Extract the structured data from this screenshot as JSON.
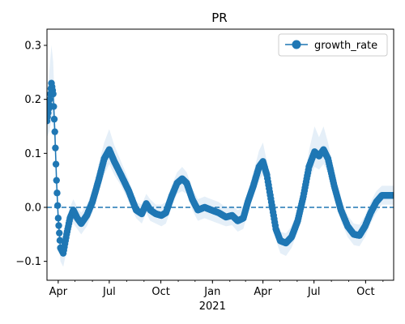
{
  "chart_data": {
    "type": "line",
    "title": "PR",
    "xlabel": "",
    "ylabel": "",
    "x_range": [
      "2020-03-12",
      "2021-11-20"
    ],
    "y_range": [
      -0.135,
      0.33
    ],
    "x_ticks": [
      {
        "date": "2020-04-01",
        "label": "Apr"
      },
      {
        "date": "2020-07-01",
        "label": "Jul"
      },
      {
        "date": "2020-10-01",
        "label": "Oct"
      },
      {
        "date": "2021-01-01",
        "label": "Jan"
      },
      {
        "date": "2021-04-01",
        "label": "Apr"
      },
      {
        "date": "2021-07-01",
        "label": "Jul"
      },
      {
        "date": "2021-10-01",
        "label": "Oct"
      }
    ],
    "x_year_label": {
      "date": "2021-01-01",
      "label": "2021"
    },
    "y_ticks": [
      -0.1,
      0.0,
      0.1,
      0.2,
      0.3
    ],
    "y_tick_labels": [
      "−0.1",
      "0.0",
      "0.1",
      "0.2",
      "0.3"
    ],
    "reference_line": {
      "y": 0.0,
      "style": "dashed"
    },
    "legend": {
      "position": "top-right",
      "entries": [
        "growth_rate"
      ]
    },
    "series": [
      {
        "name": "growth_rate",
        "color": "#1f77b4",
        "band_color": "#c6dcef",
        "points": [
          {
            "x": "2020-03-12",
            "y": 0.16,
            "lo": 0.13,
            "hi": 0.2
          },
          {
            "x": "2020-03-16",
            "y": 0.19,
            "lo": 0.14,
            "hi": 0.25
          },
          {
            "x": "2020-03-20",
            "y": 0.23,
            "lo": 0.16,
            "hi": 0.3
          },
          {
            "x": "2020-03-23",
            "y": 0.21,
            "lo": 0.15,
            "hi": 0.27
          },
          {
            "x": "2020-03-26",
            "y": 0.14,
            "lo": 0.1,
            "hi": 0.19
          },
          {
            "x": "2020-03-29",
            "y": 0.05,
            "lo": 0.02,
            "hi": 0.09
          },
          {
            "x": "2020-04-01",
            "y": -0.02,
            "lo": -0.05,
            "hi": 0.01
          },
          {
            "x": "2020-04-05",
            "y": -0.075,
            "lo": -0.1,
            "hi": -0.05
          },
          {
            "x": "2020-04-10",
            "y": -0.085,
            "lo": -0.11,
            "hi": -0.06
          },
          {
            "x": "2020-04-16",
            "y": -0.05,
            "lo": -0.08,
            "hi": -0.03
          },
          {
            "x": "2020-04-22",
            "y": -0.02,
            "lo": -0.04,
            "hi": 0.0
          },
          {
            "x": "2020-04-28",
            "y": -0.005,
            "lo": -0.03,
            "hi": 0.015
          },
          {
            "x": "2020-05-05",
            "y": -0.02,
            "lo": -0.04,
            "hi": 0.0
          },
          {
            "x": "2020-05-12",
            "y": -0.03,
            "lo": -0.05,
            "hi": -0.01
          },
          {
            "x": "2020-05-22",
            "y": -0.015,
            "lo": -0.035,
            "hi": 0.005
          },
          {
            "x": "2020-06-01",
            "y": 0.01,
            "lo": -0.01,
            "hi": 0.03
          },
          {
            "x": "2020-06-12",
            "y": 0.05,
            "lo": 0.03,
            "hi": 0.08
          },
          {
            "x": "2020-06-22",
            "y": 0.09,
            "lo": 0.06,
            "hi": 0.12
          },
          {
            "x": "2020-07-01",
            "y": 0.107,
            "lo": 0.08,
            "hi": 0.145
          },
          {
            "x": "2020-07-10",
            "y": 0.085,
            "lo": 0.06,
            "hi": 0.115
          },
          {
            "x": "2020-07-22",
            "y": 0.06,
            "lo": 0.04,
            "hi": 0.085
          },
          {
            "x": "2020-08-05",
            "y": 0.03,
            "lo": 0.01,
            "hi": 0.05
          },
          {
            "x": "2020-08-18",
            "y": -0.005,
            "lo": -0.02,
            "hi": 0.01
          },
          {
            "x": "2020-08-28",
            "y": -0.012,
            "lo": -0.03,
            "hi": 0.005
          },
          {
            "x": "2020-09-05",
            "y": 0.007,
            "lo": -0.01,
            "hi": 0.025
          },
          {
            "x": "2020-09-12",
            "y": -0.005,
            "lo": -0.025,
            "hi": 0.015
          },
          {
            "x": "2020-09-22",
            "y": -0.012,
            "lo": -0.03,
            "hi": 0.005
          },
          {
            "x": "2020-10-02",
            "y": -0.015,
            "lo": -0.035,
            "hi": 0.005
          },
          {
            "x": "2020-10-10",
            "y": -0.01,
            "lo": -0.03,
            "hi": 0.01
          },
          {
            "x": "2020-10-20",
            "y": 0.02,
            "lo": 0.0,
            "hi": 0.04
          },
          {
            "x": "2020-10-30",
            "y": 0.045,
            "lo": 0.025,
            "hi": 0.065
          },
          {
            "x": "2020-11-08",
            "y": 0.053,
            "lo": 0.03,
            "hi": 0.075
          },
          {
            "x": "2020-11-16",
            "y": 0.045,
            "lo": 0.025,
            "hi": 0.065
          },
          {
            "x": "2020-11-26",
            "y": 0.015,
            "lo": -0.005,
            "hi": 0.035
          },
          {
            "x": "2020-12-06",
            "y": -0.005,
            "lo": -0.025,
            "hi": 0.015
          },
          {
            "x": "2020-12-18",
            "y": 0.0,
            "lo": -0.02,
            "hi": 0.02
          },
          {
            "x": "2020-12-30",
            "y": -0.005,
            "lo": -0.025,
            "hi": 0.015
          },
          {
            "x": "2021-01-12",
            "y": -0.01,
            "lo": -0.03,
            "hi": 0.01
          },
          {
            "x": "2021-01-25",
            "y": -0.018,
            "lo": -0.035,
            "hi": 0.0
          },
          {
            "x": "2021-02-05",
            "y": -0.015,
            "lo": -0.033,
            "hi": 0.003
          },
          {
            "x": "2021-02-15",
            "y": -0.025,
            "lo": -0.045,
            "hi": -0.005
          },
          {
            "x": "2021-02-25",
            "y": -0.02,
            "lo": -0.04,
            "hi": 0.0
          },
          {
            "x": "2021-03-05",
            "y": 0.01,
            "lo": -0.01,
            "hi": 0.03
          },
          {
            "x": "2021-03-15",
            "y": 0.04,
            "lo": 0.02,
            "hi": 0.065
          },
          {
            "x": "2021-03-25",
            "y": 0.075,
            "lo": 0.05,
            "hi": 0.105
          },
          {
            "x": "2021-04-01",
            "y": 0.085,
            "lo": 0.06,
            "hi": 0.12
          },
          {
            "x": "2021-04-08",
            "y": 0.06,
            "lo": 0.04,
            "hi": 0.085
          },
          {
            "x": "2021-04-16",
            "y": 0.01,
            "lo": -0.01,
            "hi": 0.03
          },
          {
            "x": "2021-04-24",
            "y": -0.04,
            "lo": -0.06,
            "hi": -0.02
          },
          {
            "x": "2021-05-02",
            "y": -0.062,
            "lo": -0.085,
            "hi": -0.045
          },
          {
            "x": "2021-05-12",
            "y": -0.066,
            "lo": -0.09,
            "hi": -0.048
          },
          {
            "x": "2021-05-22",
            "y": -0.055,
            "lo": -0.075,
            "hi": -0.035
          },
          {
            "x": "2021-06-02",
            "y": -0.025,
            "lo": -0.045,
            "hi": -0.005
          },
          {
            "x": "2021-06-12",
            "y": 0.02,
            "lo": 0.0,
            "hi": 0.04
          },
          {
            "x": "2021-06-22",
            "y": 0.075,
            "lo": 0.05,
            "hi": 0.105
          },
          {
            "x": "2021-07-02",
            "y": 0.103,
            "lo": 0.075,
            "hi": 0.15
          },
          {
            "x": "2021-07-10",
            "y": 0.095,
            "lo": 0.07,
            "hi": 0.13
          },
          {
            "x": "2021-07-18",
            "y": 0.107,
            "lo": 0.08,
            "hi": 0.15
          },
          {
            "x": "2021-07-26",
            "y": 0.09,
            "lo": 0.065,
            "hi": 0.12
          },
          {
            "x": "2021-08-06",
            "y": 0.04,
            "lo": 0.02,
            "hi": 0.065
          },
          {
            "x": "2021-08-18",
            "y": -0.005,
            "lo": -0.025,
            "hi": 0.015
          },
          {
            "x": "2021-08-30",
            "y": -0.035,
            "lo": -0.055,
            "hi": -0.015
          },
          {
            "x": "2021-09-10",
            "y": -0.05,
            "lo": -0.07,
            "hi": -0.03
          },
          {
            "x": "2021-09-20",
            "y": -0.052,
            "lo": -0.072,
            "hi": -0.032
          },
          {
            "x": "2021-09-30",
            "y": -0.035,
            "lo": -0.055,
            "hi": -0.015
          },
          {
            "x": "2021-10-10",
            "y": -0.01,
            "lo": -0.03,
            "hi": 0.01
          },
          {
            "x": "2021-10-20",
            "y": 0.01,
            "lo": -0.01,
            "hi": 0.03
          },
          {
            "x": "2021-10-30",
            "y": 0.022,
            "lo": 0.005,
            "hi": 0.04
          },
          {
            "x": "2021-11-10",
            "y": 0.022,
            "lo": 0.005,
            "hi": 0.04
          },
          {
            "x": "2021-11-20",
            "y": 0.022,
            "lo": 0.005,
            "hi": 0.04
          }
        ]
      }
    ]
  }
}
